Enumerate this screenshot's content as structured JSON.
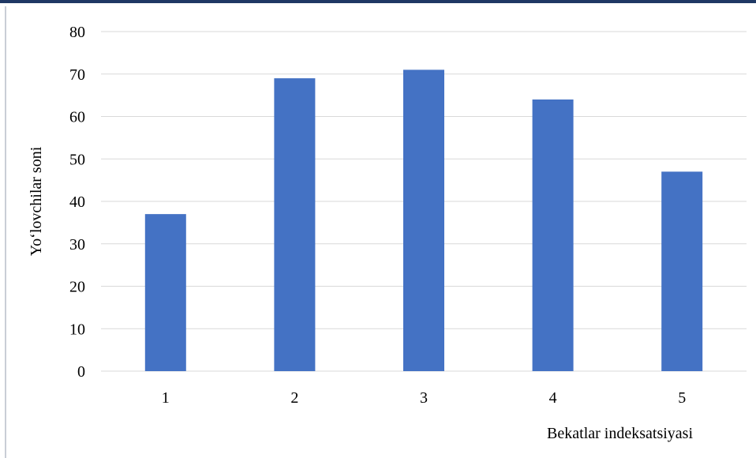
{
  "chart_data": {
    "type": "bar",
    "title": "",
    "categories": [
      "1",
      "2",
      "3",
      "4",
      "5"
    ],
    "values": [
      37,
      69,
      71,
      64,
      47
    ],
    "xlabel": "Bekatlar indeksatsiyasi",
    "ylabel": "Yo‘lovchilar soni",
    "ylim": [
      0,
      80
    ],
    "yticks": [
      "0",
      "10",
      "20",
      "30",
      "40",
      "50",
      "60",
      "70",
      "80"
    ],
    "grid": true,
    "legend": "none",
    "bar_color": "#4472c4",
    "grid_color": "#d9d9d9"
  }
}
